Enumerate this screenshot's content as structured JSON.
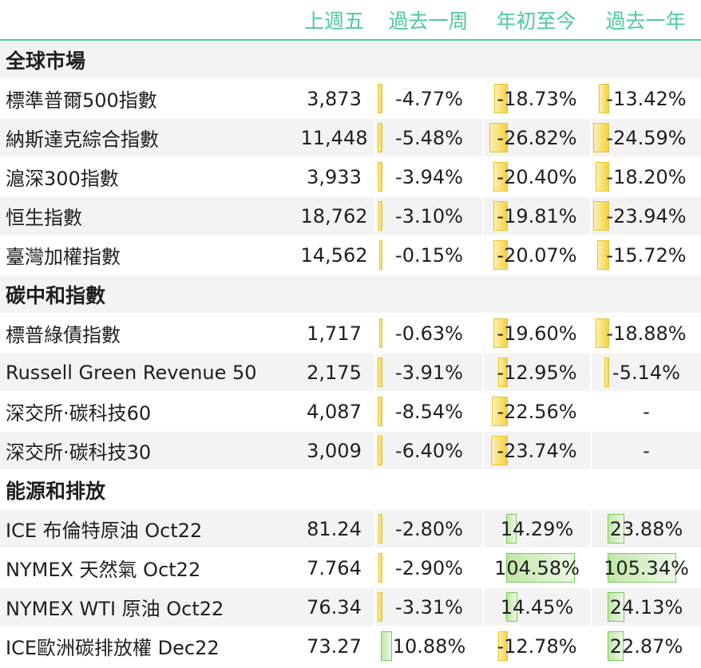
{
  "header": [
    "",
    "上週五",
    "過去一周",
    "年初至今",
    "過去一年"
  ],
  "sections": [
    {
      "title": "全球市場",
      "rows": [
        {
          "name": "標準普爾500指數",
          "value": "3,873",
          "week": "-4.77%",
          "ytd": "-18.73%",
          "year": "-13.42%",
          "week_v": -4.77,
          "ytd_v": -18.73,
          "year_v": -13.42
        },
        {
          "name": "納斯達克綜合指數",
          "value": "11,448",
          "week": "-5.48%",
          "ytd": "-26.82%",
          "year": "-24.59%",
          "week_v": -5.48,
          "ytd_v": -26.82,
          "year_v": -24.59
        },
        {
          "name": "滬深300指數",
          "value": "3,933",
          "week": "-3.94%",
          "ytd": "-20.40%",
          "year": "-18.20%",
          "week_v": -3.94,
          "ytd_v": -20.4,
          "year_v": -18.2
        },
        {
          "name": "恒生指數",
          "value": "18,762",
          "week": "-3.10%",
          "ytd": "-19.81%",
          "year": "-23.94%",
          "week_v": -3.1,
          "ytd_v": -19.81,
          "year_v": -23.94
        },
        {
          "name": "臺灣加權指數",
          "value": "14,562",
          "week": "-0.15%",
          "ytd": "-20.07%",
          "year": "-15.72%",
          "week_v": -0.15,
          "ytd_v": -20.07,
          "year_v": -15.72
        }
      ]
    },
    {
      "title": "碳中和指數",
      "rows": [
        {
          "name": "標普綠債指數",
          "value": "1,717",
          "week": "-0.63%",
          "ytd": "-19.60%",
          "year": "-18.88%",
          "week_v": -0.63,
          "ytd_v": -19.6,
          "year_v": -18.88
        },
        {
          "name": "Russell Green Revenue 50",
          "value": "2,175",
          "week": "-3.91%",
          "ytd": "-12.95%",
          "year": "-5.14%",
          "week_v": -3.91,
          "ytd_v": -12.95,
          "year_v": -5.14
        },
        {
          "name": "深交所·碳科技60",
          "value": "4,087",
          "week": "-8.54%",
          "ytd": "-22.56%",
          "year": "-",
          "week_v": -8.54,
          "ytd_v": -22.56,
          "year_v": null
        },
        {
          "name": "深交所·碳科技30",
          "value": "3,009",
          "week": "-6.40%",
          "ytd": "-23.74%",
          "year": "-",
          "week_v": -6.4,
          "ytd_v": -23.74,
          "year_v": null
        }
      ]
    },
    {
      "title": "能源和排放",
      "rows": [
        {
          "name": "ICE 布倫特原油 Oct22",
          "value": "81.24",
          "week": "-2.80%",
          "ytd": "14.29%",
          "year": "23.88%",
          "week_v": -2.8,
          "ytd_v": 14.29,
          "year_v": 23.88
        },
        {
          "name": "NYMEX 天然氣 Oct22",
          "value": "7.764",
          "week": "-2.90%",
          "ytd": "104.58%",
          "year": "105.34%",
          "week_v": -2.9,
          "ytd_v": 104.58,
          "year_v": 105.34
        },
        {
          "name": "NYMEX WTI 原油 Oct22",
          "value": "76.34",
          "week": "-3.31%",
          "ytd": "14.45%",
          "year": "24.13%",
          "week_v": -3.31,
          "ytd_v": 14.45,
          "year_v": 24.13
        },
        {
          "name": "ICE歐洲碳排放權  Dec22",
          "value": "73.27",
          "week": "10.88%",
          "ytd": "-12.78%",
          "year": "22.87%",
          "week_v": 10.88,
          "ytd_v": -12.78,
          "year_v": 22.87
        }
      ]
    }
  ],
  "colors": {
    "header_text": "#4ec99b",
    "negative_bar": "#f4d23a",
    "positive_bar": "#a8dd8a",
    "stripe": "#f3f3f3"
  }
}
